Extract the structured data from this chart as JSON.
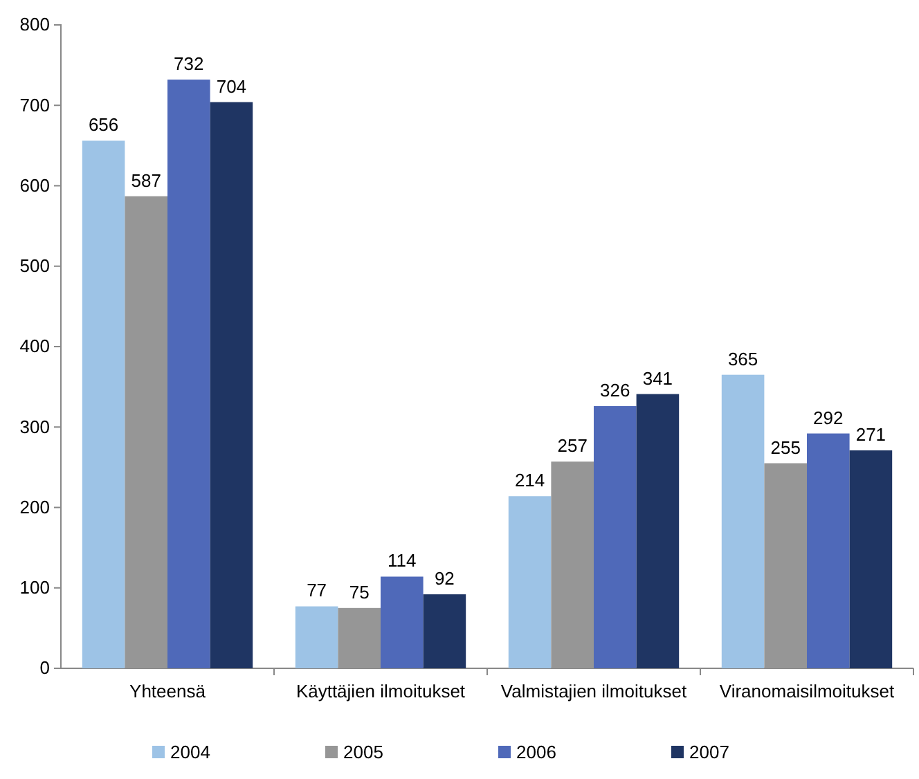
{
  "chart_data": {
    "type": "bar",
    "categories": [
      "Yhteensä",
      "Käyttäjien ilmoitukset",
      "Valmistajien ilmoitukset",
      "Viranomaisilmoitukset"
    ],
    "series": [
      {
        "name": "2004",
        "color": "#9dc3e6",
        "values": [
          656,
          77,
          214,
          365
        ]
      },
      {
        "name": "2005",
        "color": "#969696",
        "values": [
          587,
          75,
          257,
          255
        ]
      },
      {
        "name": "2006",
        "color": "#4f69b9",
        "values": [
          732,
          114,
          326,
          292
        ]
      },
      {
        "name": "2007",
        "color": "#1f3563",
        "values": [
          704,
          92,
          341,
          271
        ]
      }
    ],
    "ylim": [
      0,
      800
    ],
    "yticks": [
      0,
      100,
      200,
      300,
      400,
      500,
      600,
      700,
      800
    ],
    "grid": false,
    "legend": "bottom",
    "data_labels": true
  }
}
